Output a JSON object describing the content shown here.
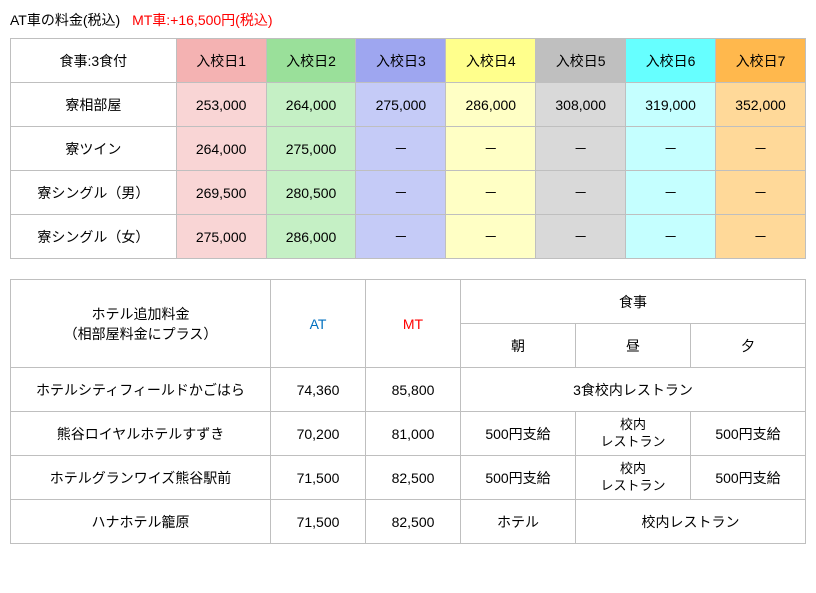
{
  "title": {
    "black": "AT車の料金(税込)",
    "red": "MT車:+16,500円(税込)"
  },
  "pricing_table": {
    "row_header_col_label": "食事:3食付",
    "col_headers": [
      "入校日1",
      "入校日2",
      "入校日3",
      "入校日4",
      "入校日5",
      "入校日6",
      "入校日7"
    ],
    "col_colors": [
      "#f4b2b2",
      "#9ae09a",
      "#9ea6f0",
      "#ffff8c",
      "#bfbfbf",
      "#66ffff",
      "#ffb84d"
    ],
    "body_colors": [
      "#f9d5d5",
      "#c5f0c5",
      "#c5cbf7",
      "#ffffc5",
      "#d9d9d9",
      "#c5ffff",
      "#ffd999"
    ],
    "row_labels": [
      "寮相部屋",
      "寮ツイン",
      "寮シングル（男）",
      "寮シングル（女）"
    ],
    "rows": [
      [
        "253,000",
        "264,000",
        "275,000",
        "286,000",
        "308,000",
        "319,000",
        "352,000"
      ],
      [
        "264,000",
        "275,000",
        "－",
        "－",
        "－",
        "－",
        "－"
      ],
      [
        "269,500",
        "280,500",
        "－",
        "－",
        "－",
        "－",
        "－"
      ],
      [
        "275,000",
        "286,000",
        "－",
        "－",
        "－",
        "－",
        "－"
      ]
    ]
  },
  "hotel_table": {
    "header_hotel_l1": "ホテル追加料金",
    "header_hotel_l2": "（相部屋料金にプラス）",
    "header_at": "AT",
    "header_mt": "MT",
    "header_meal": "食事",
    "header_morning": "朝",
    "header_noon": "昼",
    "header_evening": "夕",
    "rows": [
      {
        "name": "ホテルシティフィールドかごはら",
        "at": "74,360",
        "mt": "85,800",
        "meal_span3": "3食校内レストラン"
      },
      {
        "name": "熊谷ロイヤルホテルすずき",
        "at": "70,200",
        "mt": "81,000",
        "m": "500円支給",
        "n_l1": "校内",
        "n_l2": "レストラン",
        "e": "500円支給"
      },
      {
        "name": "ホテルグランワイズ熊谷駅前",
        "at": "71,500",
        "mt": "82,500",
        "m": "500円支給",
        "n_l1": "校内",
        "n_l2": "レストラン",
        "e": "500円支給"
      },
      {
        "name": "ハナホテル籠原",
        "at": "71,500",
        "mt": "82,500",
        "m": "ホテル",
        "ne_span2": "校内レストラン"
      }
    ]
  }
}
